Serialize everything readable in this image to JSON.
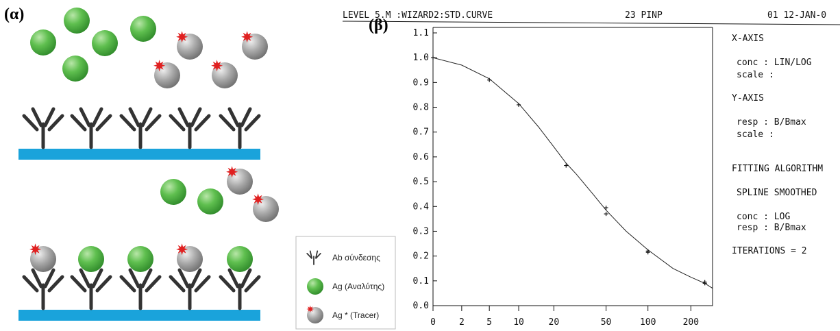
{
  "panel_a": {
    "label": "(α)",
    "legend": [
      "Ab σύνδεσης",
      "Ag (Αναλύτης)",
      "Ag * (Tracer)"
    ]
  },
  "chart_data": {
    "type": "line",
    "panel_label": "(β)",
    "header": [
      "LEVEL 5.M :WIZARD2:STD.CURVE",
      "23 PINP",
      "01  12-JAN-0"
    ],
    "notes": [
      "X-AXIS",
      "conc  : LIN/LOG",
      "scale :",
      "Y-AXIS",
      "resp  : B/Bmax",
      "scale :",
      "FITTING ALGORITHM",
      "SPLINE  SMOOTHED",
      "conc  : LOG",
      "resp  : B/Bmax",
      "ITERATIONS = 2"
    ],
    "xscale": "linlog",
    "xlim": [
      0,
      283
    ],
    "ylim": [
      0,
      1.1
    ],
    "xticks": [
      0,
      2,
      5,
      10,
      20,
      50,
      100,
      200
    ],
    "yticks": [
      {
        "value": 0,
        "label": "0.0"
      },
      0.1,
      0.2,
      0.3,
      0.4,
      0.5,
      0.6,
      0.7,
      0.8,
      0.9,
      {
        "value": 1,
        "label": "1.0"
      },
      1.1
    ],
    "series": [
      {
        "marker": "plus",
        "color": "#111",
        "x": [
          0,
          5,
          10,
          25,
          50,
          50,
          100,
          100,
          250,
          250
        ],
        "values": [
          1.0,
          0.91,
          0.81,
          0.565,
          0.395,
          0.37,
          0.22,
          0.215,
          0.095,
          0.09
        ]
      },
      {
        "marker": "none",
        "color": "#222",
        "x": [
          0,
          2,
          5,
          10,
          15,
          20,
          25,
          30,
          40,
          50,
          70,
          100,
          150,
          200,
          250,
          283
        ],
        "values": [
          1.0,
          0.97,
          0.915,
          0.815,
          0.72,
          0.64,
          0.575,
          0.53,
          0.45,
          0.385,
          0.3,
          0.225,
          0.15,
          0.115,
          0.09,
          0.07
        ]
      }
    ]
  }
}
